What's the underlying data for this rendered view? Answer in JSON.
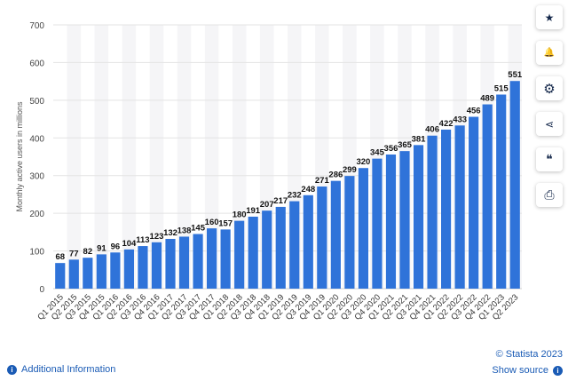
{
  "chart_data": {
    "type": "bar",
    "ylabel": "Monthly active users in millions",
    "ylim": [
      0,
      700
    ],
    "yticks": [
      0,
      100,
      200,
      300,
      400,
      500,
      600,
      700
    ],
    "grid": true,
    "bar_color": "#2f73d9",
    "categories": [
      "Q1 2015",
      "Q2 2015",
      "Q3 2015",
      "Q4 2015",
      "Q1 2016",
      "Q2 2016",
      "Q3 2016",
      "Q4 2016",
      "Q1 2017",
      "Q2 2017",
      "Q3 2017",
      "Q4 2017",
      "Q1 2018",
      "Q2 2018",
      "Q3 2018",
      "Q4 2018",
      "Q1 2019",
      "Q2 2019",
      "Q3 2019",
      "Q4 2019",
      "Q1 2020",
      "Q2 2020",
      "Q3 2020",
      "Q4 2020",
      "Q1 2021",
      "Q2 2021",
      "Q3 2021",
      "Q4 2021",
      "Q1 2022",
      "Q2 2022",
      "Q3 2022",
      "Q4 2022",
      "Q1 2023",
      "Q2 2023"
    ],
    "values": [
      68,
      77,
      82,
      91,
      96,
      104,
      113,
      123,
      132,
      138,
      145,
      160,
      157,
      180,
      191,
      207,
      217,
      232,
      248,
      271,
      286,
      299,
      320,
      345,
      356,
      365,
      381,
      406,
      422,
      433,
      456,
      489,
      515,
      551
    ]
  },
  "sidebar": {
    "buttons": [
      {
        "name": "star-icon",
        "glyph": "★"
      },
      {
        "name": "bell-icon",
        "glyph": "🔔"
      },
      {
        "name": "gear-icon",
        "glyph": "⚙"
      },
      {
        "name": "share-icon",
        "glyph": "⋖"
      },
      {
        "name": "quote-icon",
        "glyph": "❝"
      },
      {
        "name": "print-icon",
        "glyph": "⎙"
      }
    ]
  },
  "footer": {
    "additional_info": "Additional Information",
    "copyright": "© Statista 2023",
    "show_source": "Show source"
  },
  "colors": {
    "link": "#1a5bb5",
    "bar": "#2f73d9"
  }
}
